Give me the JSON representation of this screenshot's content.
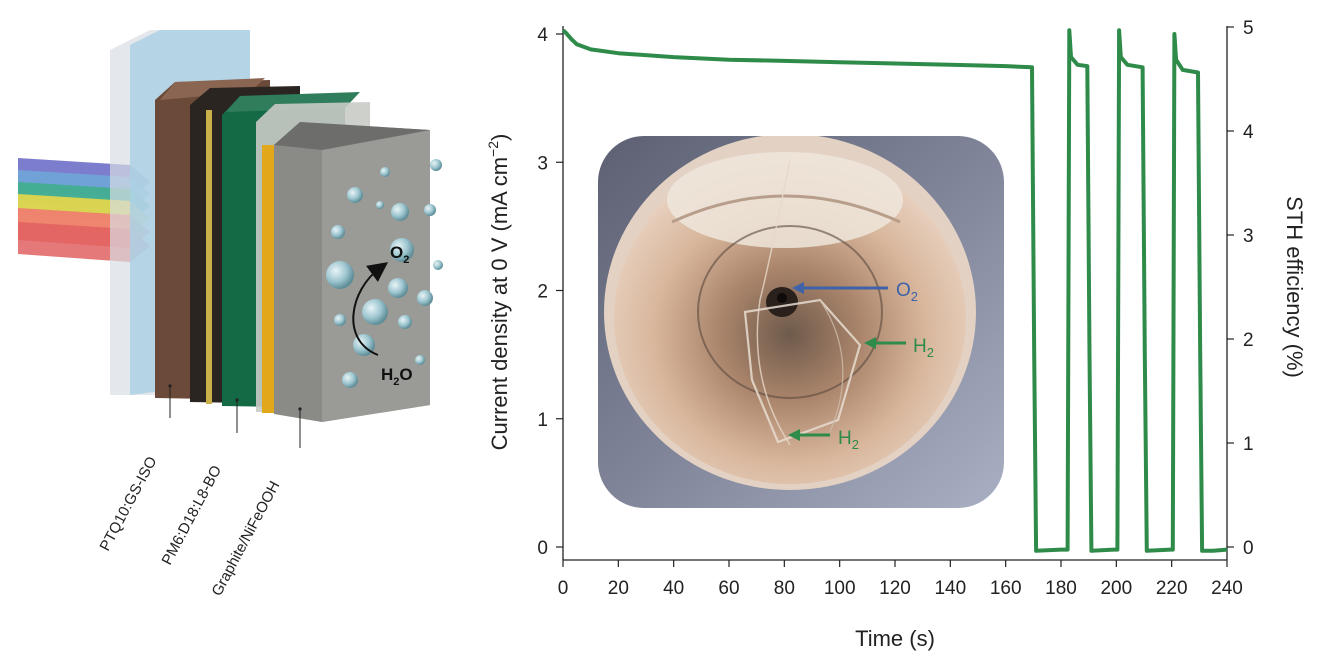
{
  "device": {
    "layers": [
      "PTQ10:GS-ISO",
      "PM6:D18:L8-BO",
      "Graphite/NiFeOOH"
    ],
    "product_label": {
      "main": "O",
      "sub": "2"
    },
    "reactant_label": {
      "main": "H",
      "sub": "2",
      "tail": "O"
    }
  },
  "photo": {
    "labels": [
      {
        "main": "O",
        "sub": "2",
        "color": "#3f62a8"
      },
      {
        "main": "H",
        "sub": "2",
        "color": "#2e8b4a"
      },
      {
        "main": "H",
        "sub": "2",
        "color": "#2e8b4a"
      }
    ]
  },
  "chart_data": {
    "type": "line",
    "xlabel": "Time (s)",
    "ylabel": "Current density at 0 V (mA cm",
    "ylabel_sup": "−2",
    "ylabel_tail": ")",
    "y2label": "STH efficiency (%)",
    "xlim": [
      0,
      240
    ],
    "ylim": [
      -0.1,
      4.05
    ],
    "y2lim": [
      -0.125,
      5.0625
    ],
    "x_ticks": [
      0,
      20,
      40,
      60,
      80,
      100,
      120,
      140,
      160,
      180,
      200,
      220,
      240
    ],
    "y_ticks": [
      0,
      1,
      2,
      3,
      4
    ],
    "y2_ticks": [
      0,
      1,
      2,
      3,
      4,
      5
    ],
    "line_color": "#2e8b4a",
    "series": [
      {
        "x": [
          0,
          1,
          3,
          5,
          10,
          20,
          40,
          60,
          80,
          100,
          120,
          140,
          160,
          169.5,
          170.3,
          171,
          180,
          182.4,
          183,
          183.6,
          186,
          189.5,
          190.3,
          191,
          199,
          200.4,
          201,
          201.6,
          204,
          209.5,
          210.3,
          211,
          219.5,
          220.4,
          221,
          221.6,
          224,
          229.5,
          230.3,
          231,
          235,
          240
        ],
        "y": [
          4.03,
          4.01,
          3.96,
          3.92,
          3.88,
          3.85,
          3.82,
          3.8,
          3.79,
          3.78,
          3.77,
          3.76,
          3.75,
          3.74,
          1.5,
          -0.03,
          -0.02,
          -0.02,
          4.03,
          3.82,
          3.76,
          3.75,
          1.5,
          -0.03,
          -0.02,
          -0.02,
          4.03,
          3.82,
          3.76,
          3.74,
          1.5,
          -0.03,
          -0.02,
          -0.02,
          4.0,
          3.8,
          3.72,
          3.7,
          1.5,
          -0.03,
          -0.03,
          -0.02
        ]
      }
    ]
  }
}
